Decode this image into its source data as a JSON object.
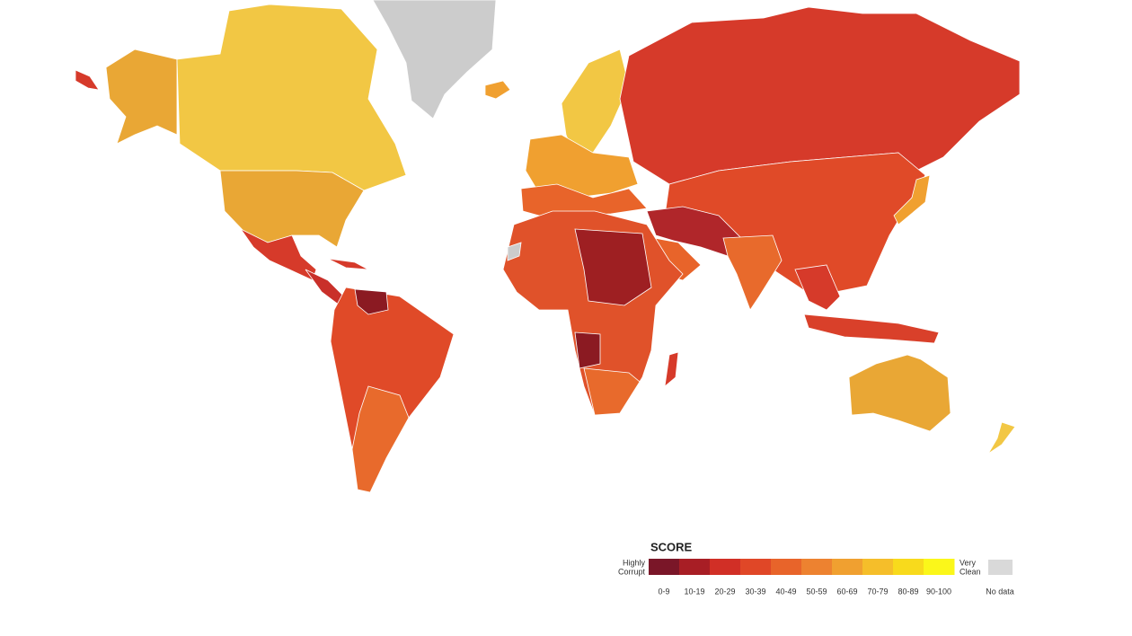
{
  "legend": {
    "title": "SCORE",
    "low_label": [
      "Highly",
      "Corrupt"
    ],
    "high_label": [
      "Very",
      "Clean"
    ],
    "bins": [
      {
        "label": "0-9",
        "color": "#7a1628"
      },
      {
        "label": "10-19",
        "color": "#a81e25"
      },
      {
        "label": "20-29",
        "color": "#d12f26"
      },
      {
        "label": "30-39",
        "color": "#e04727"
      },
      {
        "label": "40-49",
        "color": "#e8642a"
      },
      {
        "label": "50-59",
        "color": "#ed8230"
      },
      {
        "label": "60-69",
        "color": "#f0a030"
      },
      {
        "label": "70-79",
        "color": "#f5be2a"
      },
      {
        "label": "80-89",
        "color": "#f8da1c"
      },
      {
        "label": "90-100",
        "color": "#fbf71a"
      }
    ],
    "no_data": {
      "label": "No data",
      "color": "#d9d9d9"
    }
  }
}
